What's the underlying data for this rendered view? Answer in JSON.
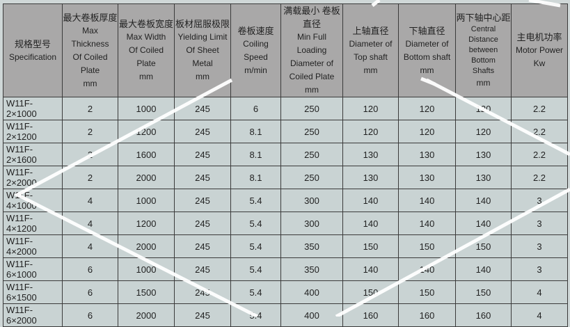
{
  "headers": [
    {
      "cn": "规格型号",
      "en": [
        "Specification"
      ]
    },
    {
      "cn": "最大卷板厚度",
      "en": [
        "Max Thickness",
        "Of Coiled Plate",
        "mm"
      ]
    },
    {
      "cn": "最大卷板宽度",
      "en": [
        "Max Width",
        "Of Coiled Plate",
        "mm"
      ]
    },
    {
      "cn": "板材屈服极限",
      "en": [
        "Yielding Limit",
        "Of Sheet Metal",
        "mm"
      ]
    },
    {
      "cn": "卷板速度",
      "en": [
        "Coiling Speed",
        "m/min"
      ]
    },
    {
      "cn": "满载最小 卷板直径",
      "en": [
        "Min Full Loading",
        "Diameter of",
        "Coiled Plate",
        "mm"
      ]
    },
    {
      "cn": "上轴直径",
      "en": [
        "Diameter of",
        "Top shaft",
        "mm"
      ]
    },
    {
      "cn": "下轴直径",
      "en": [
        "Diameter of",
        "Bottom shaft",
        "mm"
      ]
    },
    {
      "cn": "两下轴中心距",
      "en": [
        "Central Distance",
        "between Bottom",
        "Shafts",
        "mm"
      ]
    },
    {
      "cn": "主电机功率",
      "en": [
        "Motor Power",
        "Kw"
      ]
    }
  ],
  "rows": [
    [
      "W11F-2×1000",
      "2",
      "1000",
      "245",
      "6",
      "250",
      "120",
      "120",
      "120",
      "2.2"
    ],
    [
      "W11F-2×1200",
      "2",
      "1200",
      "245",
      "8.1",
      "250",
      "120",
      "120",
      "120",
      "2.2"
    ],
    [
      "W11F-2×1600",
      "2",
      "1600",
      "245",
      "8.1",
      "250",
      "130",
      "130",
      "130",
      "2.2"
    ],
    [
      "W11F-2×2000",
      "2",
      "2000",
      "245",
      "8.1",
      "250",
      "130",
      "130",
      "130",
      "2.2"
    ],
    [
      "W11F-4×1000",
      "4",
      "1000",
      "245",
      "5.4",
      "300",
      "140",
      "140",
      "140",
      "3"
    ],
    [
      "W11F-4×1200",
      "4",
      "1200",
      "245",
      "5.4",
      "300",
      "140",
      "140",
      "140",
      "3"
    ],
    [
      "W11F-4×2000",
      "4",
      "2000",
      "245",
      "5.4",
      "350",
      "150",
      "150",
      "150",
      "3"
    ],
    [
      "W11F-6×1000",
      "6",
      "1000",
      "245",
      "5.4",
      "350",
      "140",
      "140",
      "140",
      "3"
    ],
    [
      "W11F-6×1500",
      "6",
      "1500",
      "245",
      "5.4",
      "400",
      "150",
      "150",
      "150",
      "4"
    ],
    [
      "W11F-6×2000",
      "6",
      "2000",
      "245",
      "5.4",
      "400",
      "160",
      "160",
      "160",
      "4"
    ]
  ],
  "colors": {
    "header_bg": "#a9a8a8",
    "cell_bg": "#c9d3d3",
    "page_bg": "#cfd7d7",
    "grid": "#3a3a3a"
  }
}
